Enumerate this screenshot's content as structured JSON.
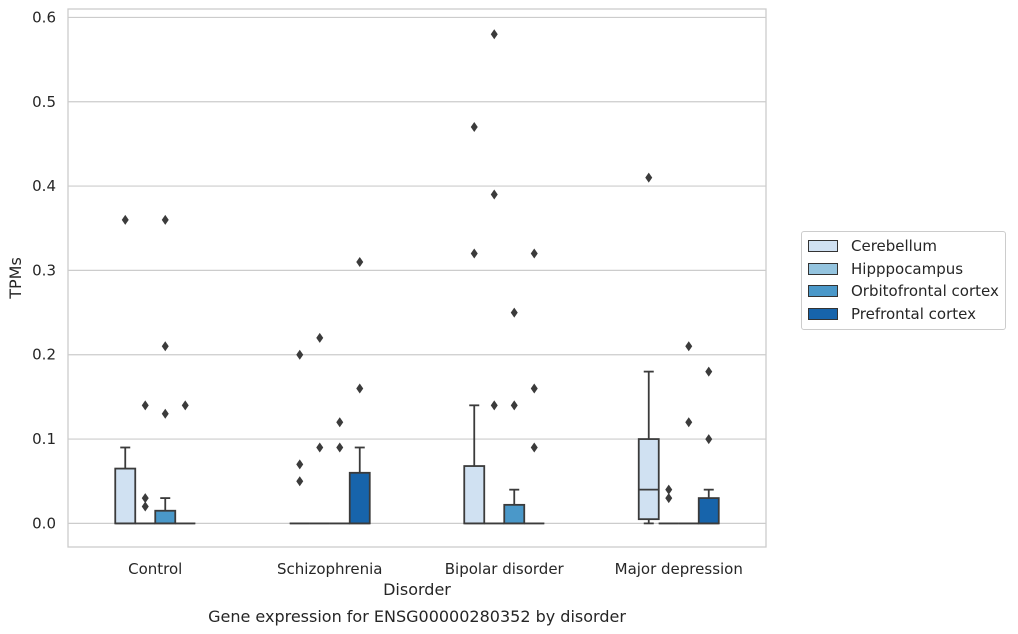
{
  "chart_data": {
    "type": "box",
    "title": "Gene expression for ENSG00000280352 by disorder",
    "xlabel": "Disorder",
    "ylabel": "TPMs",
    "ylim": [
      -0.028,
      0.61
    ],
    "yticks": [
      "0.0",
      "0.1",
      "0.2",
      "0.3",
      "0.4",
      "0.5",
      "0.6"
    ],
    "categories": [
      "Control",
      "Schizophrenia",
      "Bipolar disorder",
      "Major depression"
    ],
    "grid": "horizontal",
    "legend_position": "right",
    "series": [
      {
        "name": "Cerebellum",
        "color": "#d0e1f2",
        "boxes": [
          {
            "q1": 0.0,
            "median": 0.0,
            "q3": 0.065,
            "whislo": 0.0,
            "whishi": 0.09,
            "fliers": [
              0.36
            ]
          },
          {
            "q1": 0.0,
            "median": 0.0,
            "q3": 0.0,
            "whislo": 0.0,
            "whishi": 0.0,
            "fliers": [
              0.2,
              0.07,
              0.05
            ]
          },
          {
            "q1": 0.0,
            "median": 0.0,
            "q3": 0.068,
            "whislo": 0.0,
            "whishi": 0.14,
            "fliers": [
              0.47,
              0.32
            ]
          },
          {
            "q1": 0.005,
            "median": 0.04,
            "q3": 0.1,
            "whislo": 0.0,
            "whishi": 0.18,
            "fliers": [
              0.41
            ]
          }
        ]
      },
      {
        "name": "Hipppocampus",
        "color": "#94c4df",
        "boxes": [
          {
            "q1": 0.0,
            "median": 0.0,
            "q3": 0.0,
            "whislo": 0.0,
            "whishi": 0.0,
            "fliers": [
              0.14,
              0.03,
              0.02
            ]
          },
          {
            "q1": 0.0,
            "median": 0.0,
            "q3": 0.0,
            "whislo": 0.0,
            "whishi": 0.0,
            "fliers": [
              0.22,
              0.09
            ]
          },
          {
            "q1": 0.0,
            "median": 0.0,
            "q3": 0.0,
            "whislo": 0.0,
            "whishi": 0.0,
            "fliers": [
              0.58,
              0.39,
              0.14
            ]
          },
          {
            "q1": 0.0,
            "median": 0.0,
            "q3": 0.0,
            "whislo": 0.0,
            "whishi": 0.0,
            "fliers": [
              0.04,
              0.03
            ]
          }
        ]
      },
      {
        "name": "Orbitofrontal cortex",
        "color": "#4a98c9",
        "boxes": [
          {
            "q1": 0.0,
            "median": 0.0,
            "q3": 0.015,
            "whislo": 0.0,
            "whishi": 0.03,
            "fliers": [
              0.36,
              0.21,
              0.13
            ]
          },
          {
            "q1": 0.0,
            "median": 0.0,
            "q3": 0.0,
            "whislo": 0.0,
            "whishi": 0.0,
            "fliers": [
              0.12,
              0.09
            ]
          },
          {
            "q1": 0.0,
            "median": 0.0,
            "q3": 0.022,
            "whislo": 0.0,
            "whishi": 0.04,
            "fliers": [
              0.25,
              0.14
            ]
          },
          {
            "q1": 0.0,
            "median": 0.0,
            "q3": 0.0,
            "whislo": 0.0,
            "whishi": 0.0,
            "fliers": [
              0.21,
              0.12
            ]
          }
        ]
      },
      {
        "name": "Prefrontal cortex",
        "color": "#1764ab",
        "boxes": [
          {
            "q1": 0.0,
            "median": 0.0,
            "q3": 0.0,
            "whislo": 0.0,
            "whishi": 0.0,
            "fliers": [
              0.14
            ]
          },
          {
            "q1": 0.0,
            "median": 0.0,
            "q3": 0.06,
            "whislo": 0.0,
            "whishi": 0.09,
            "fliers": [
              0.31,
              0.16
            ]
          },
          {
            "q1": 0.0,
            "median": 0.0,
            "q3": 0.0,
            "whislo": 0.0,
            "whishi": 0.0,
            "fliers": [
              0.32,
              0.16,
              0.09
            ]
          },
          {
            "q1": 0.0,
            "median": 0.0,
            "q3": 0.03,
            "whislo": 0.0,
            "whishi": 0.04,
            "fliers": [
              0.18,
              0.1
            ]
          }
        ]
      }
    ]
  }
}
